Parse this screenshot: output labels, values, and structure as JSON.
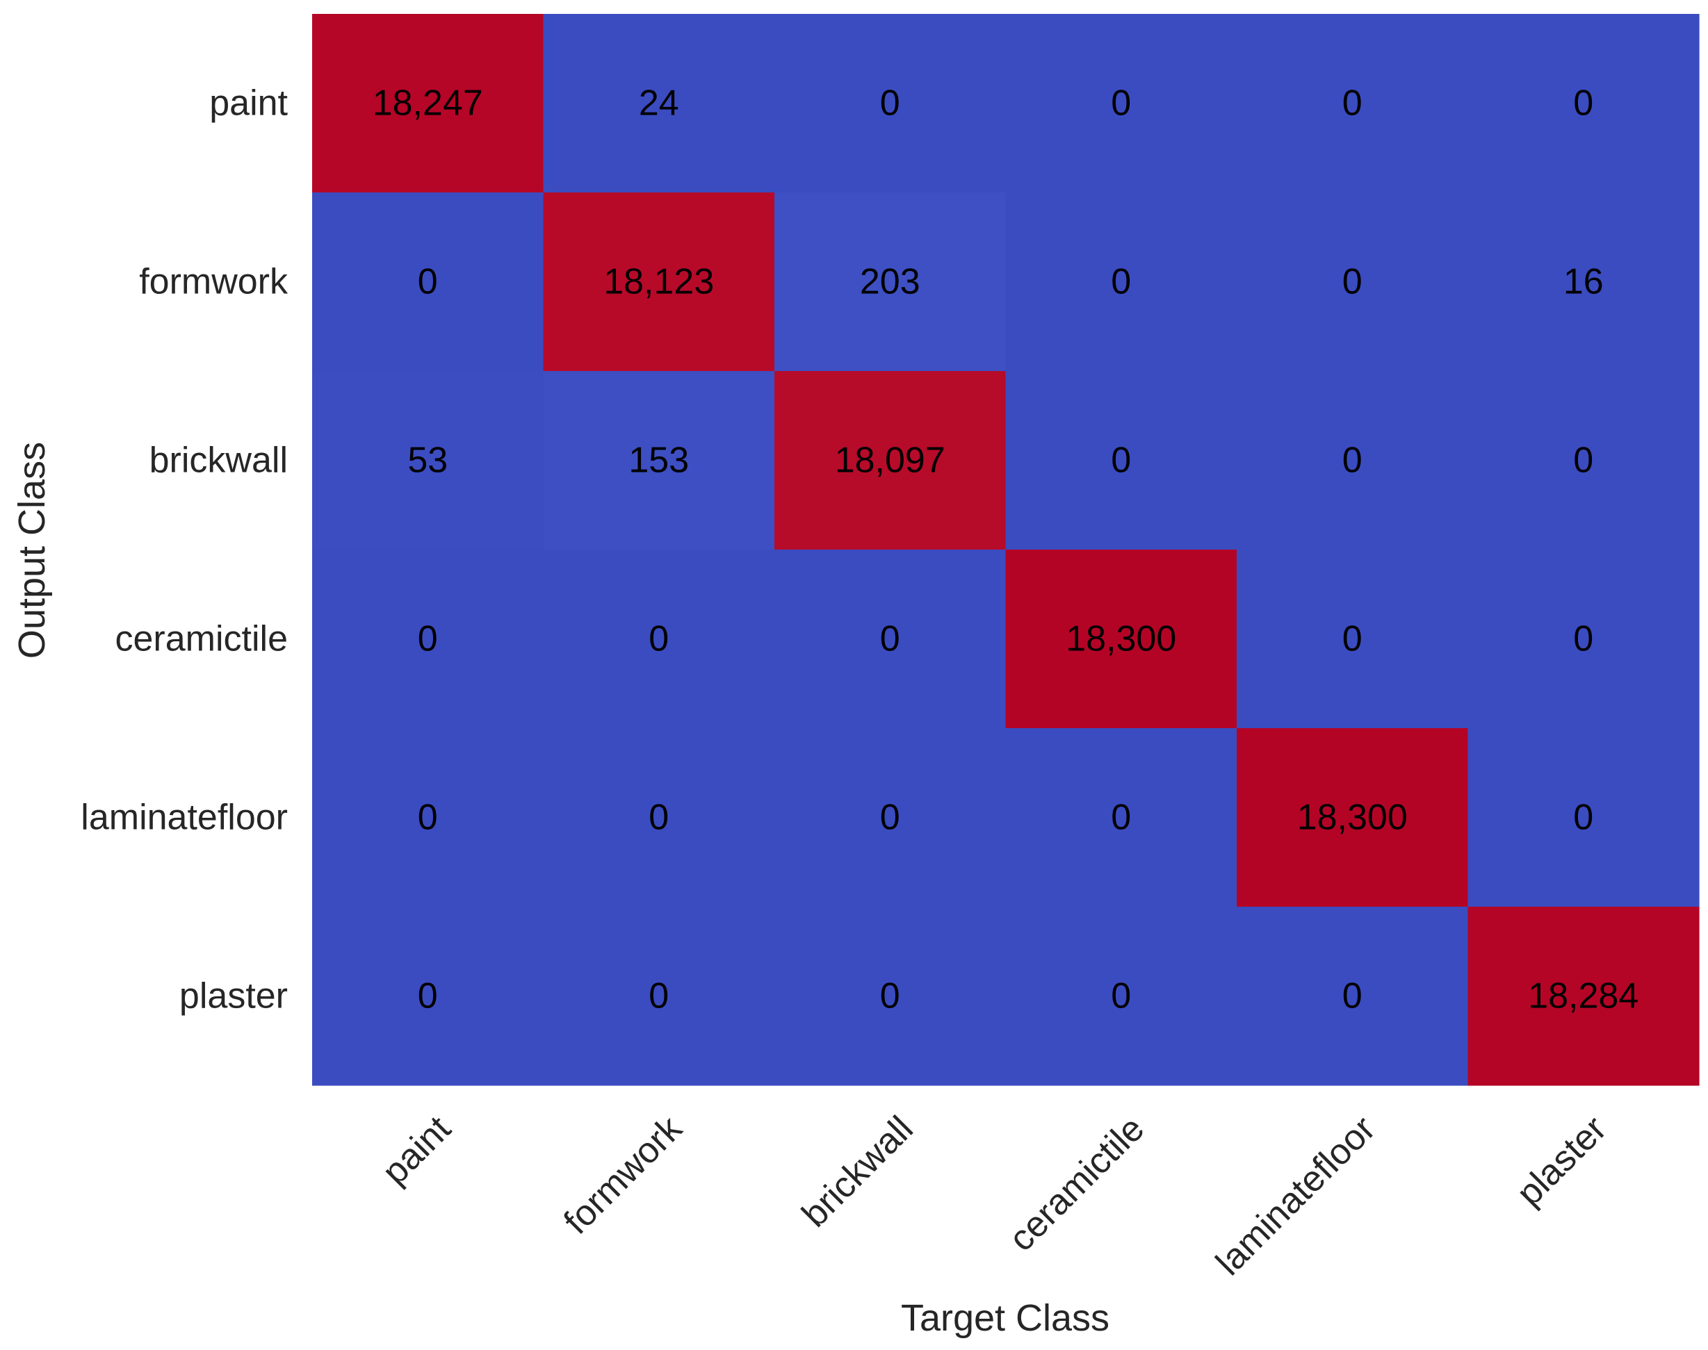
{
  "chart_data": {
    "type": "heatmap",
    "title": "",
    "xlabel": "Target Class",
    "ylabel": "Output Class",
    "x_categories": [
      "paint",
      "formwork",
      "brickwall",
      "ceramictile",
      "laminatefloor",
      "plaster"
    ],
    "y_categories": [
      "paint",
      "formwork",
      "brickwall",
      "ceramictile",
      "laminatefloor",
      "plaster"
    ],
    "values": [
      [
        18247,
        24,
        0,
        0,
        0,
        0
      ],
      [
        0,
        18123,
        203,
        0,
        0,
        16
      ],
      [
        53,
        153,
        18097,
        0,
        0,
        0
      ],
      [
        0,
        0,
        0,
        18300,
        0,
        0
      ],
      [
        0,
        0,
        0,
        0,
        18300,
        0
      ],
      [
        0,
        0,
        0,
        0,
        0,
        18284
      ]
    ],
    "value_labels": [
      [
        "18,247",
        "24",
        "0",
        "0",
        "0",
        "0"
      ],
      [
        "0",
        "18,123",
        "203",
        "0",
        "0",
        "16"
      ],
      [
        "53",
        "153",
        "18,097",
        "0",
        "0",
        "0"
      ],
      [
        "0",
        "0",
        "0",
        "18,300",
        "0",
        "0"
      ],
      [
        "0",
        "0",
        "0",
        "0",
        "18,300",
        "0"
      ],
      [
        "0",
        "0",
        "0",
        "0",
        "0",
        "18,284"
      ]
    ],
    "colormap": "coolwarm",
    "vmin": 0,
    "vmax": 18300,
    "colors": {
      "low": "#3b4cc0",
      "high": "#b40426"
    },
    "grid": false,
    "colorbar": false
  }
}
